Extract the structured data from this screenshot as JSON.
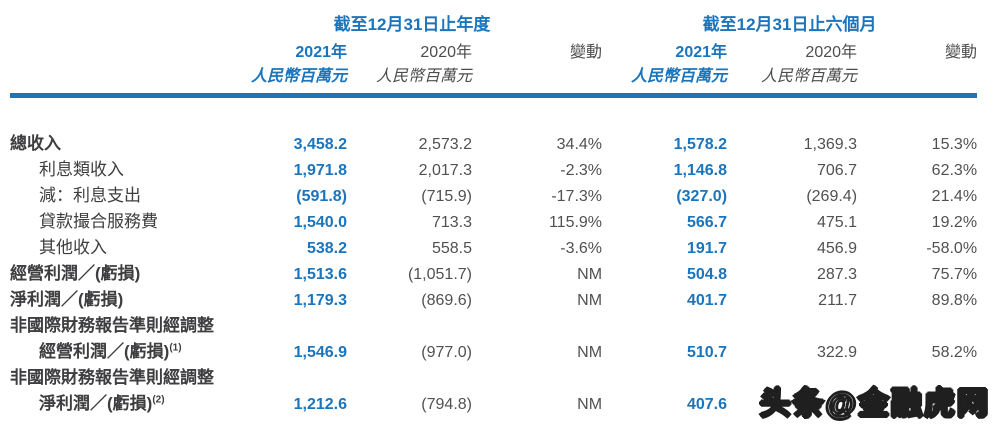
{
  "table": {
    "groups": [
      {
        "title": "截至12月31日止年度"
      },
      {
        "title": "截至12月31日止六個月"
      }
    ],
    "columns": {
      "y2021": "2021年",
      "y2020": "2020年",
      "change": "變動",
      "unit": "人民幣百萬元"
    },
    "rows": [
      {
        "label": "總收入",
        "values": [
          "3,458.2",
          "2,573.2",
          "34.4%",
          "1,578.2",
          "1,369.3",
          "15.3%"
        ]
      },
      {
        "label": "利息類收入",
        "values": [
          "1,971.8",
          "2,017.3",
          "-2.3%",
          "1,146.8",
          "706.7",
          "62.3%"
        ]
      },
      {
        "label": "減：利息支出",
        "values": [
          "(591.8)",
          "(715.9)",
          "-17.3%",
          "(327.0)",
          "(269.4)",
          "21.4%"
        ]
      },
      {
        "label": "貸款撮合服務費",
        "values": [
          "1,540.0",
          "713.3",
          "115.9%",
          "566.7",
          "475.1",
          "19.2%"
        ]
      },
      {
        "label": "其他收入",
        "values": [
          "538.2",
          "558.5",
          "-3.6%",
          "191.7",
          "456.9",
          "-58.0%"
        ]
      },
      {
        "label": "經營利潤／(虧損)",
        "values": [
          "1,513.6",
          "(1,051.7)",
          "NM",
          "504.8",
          "287.3",
          "75.7%"
        ]
      },
      {
        "label": "淨利潤／(虧損)",
        "values": [
          "1,179.3",
          "(869.6)",
          "NM",
          "401.7",
          "211.7",
          "89.8%"
        ]
      },
      {
        "label": "非國際財務報告準則經調整",
        "values": [
          "",
          "",
          "",
          "",
          "",
          ""
        ]
      },
      {
        "label": "經營利潤／(虧損)",
        "sup": "(1)",
        "values": [
          "1,546.9",
          "(977.0)",
          "NM",
          "510.7",
          "322.9",
          "58.2%"
        ]
      },
      {
        "label": "非國際財務報告準則經調整",
        "values": [
          "",
          "",
          "",
          "",
          "",
          ""
        ]
      },
      {
        "label": "淨利潤／(虧損)",
        "sup": "(2)",
        "values": [
          "1,212.6",
          "(794.8)",
          "NM",
          "407.6",
          "",
          ""
        ]
      }
    ]
  },
  "watermark": {
    "text": "头条@金融虎网"
  },
  "colors": {
    "accent_blue": "#1b75bc",
    "value_gray": "#515154",
    "label_dark": "#3e3e40"
  }
}
